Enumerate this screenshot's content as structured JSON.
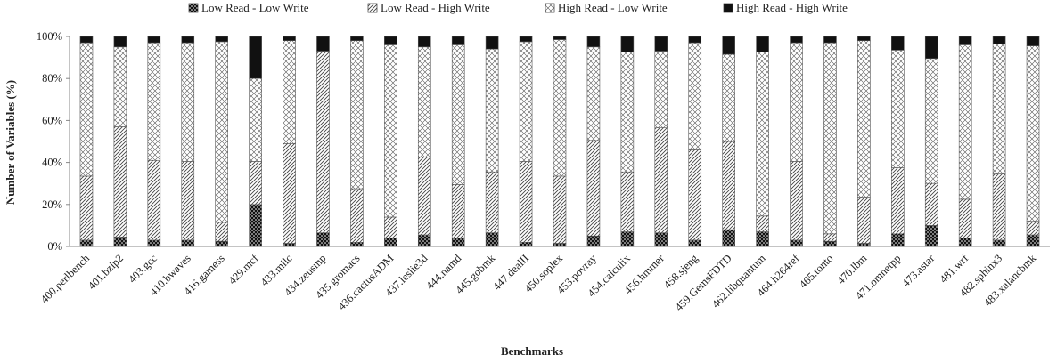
{
  "chart_data": {
    "type": "bar",
    "stacked": true,
    "percent_stacked": true,
    "title": "",
    "xlabel": "Benchmarks",
    "ylabel": "Number of Variables (%)",
    "ylim": [
      0,
      100
    ],
    "yticks": [
      "0%",
      "20%",
      "40%",
      "60%",
      "80%",
      "100%"
    ],
    "grid": false,
    "legend_position": "top-center",
    "categories": [
      "400.perlbench",
      "401.bzip2",
      "403.gcc",
      "410.bwaves",
      "416.gamess",
      "429.mcf",
      "433.milc",
      "434.zeusmp",
      "435.gromacs",
      "436.cactusADM",
      "437.leslie3d",
      "444.namd",
      "445.gobmk",
      "447.dealII",
      "450.soplex",
      "453.povray",
      "454.calculix",
      "456.hmmer",
      "458.sjeng",
      "459.GemsFDTD",
      "462.libquantum",
      "464.h264ref",
      "465.tonto",
      "470.lbm",
      "471.omnetpp",
      "473.astar",
      "481.wrf",
      "482.sphinx3",
      "483.xalancbmk"
    ],
    "series": [
      {
        "name": "Low Read - Low Write",
        "pattern": "dots-on-black",
        "values": [
          3,
          4.5,
          3,
          3,
          2.5,
          20,
          1.5,
          6.5,
          2,
          4,
          5.5,
          4,
          6.5,
          2,
          1.5,
          5,
          7,
          6.5,
          3,
          8,
          7,
          3,
          2.5,
          1.5,
          6,
          10,
          4,
          3,
          5.5
        ]
      },
      {
        "name": "Low Read - High Write",
        "pattern": "diagonal-hatch",
        "values": [
          30.5,
          52.5,
          38,
          37.5,
          9,
          20.5,
          47.5,
          86.5,
          25.5,
          10,
          37,
          25.5,
          29,
          38.5,
          32,
          45.5,
          28.5,
          50,
          43,
          42,
          7.5,
          37.5,
          3.5,
          22,
          31.5,
          20,
          18.5,
          31.5,
          6.5
        ]
      },
      {
        "name": "High Read - Low Write",
        "pattern": "cross-hatch",
        "values": [
          63.5,
          38,
          56,
          56.5,
          86,
          39.5,
          49,
          0,
          70.5,
          82,
          52.5,
          66.5,
          58.5,
          57,
          65,
          44.5,
          57,
          36.5,
          51,
          41.5,
          78,
          56.5,
          91,
          74.5,
          56,
          59.5,
          73.5,
          62,
          83.5
        ]
      },
      {
        "name": "High Read - High Write",
        "pattern": "solid-black",
        "values": [
          3,
          5,
          3,
          3,
          2.5,
          20,
          2,
          7,
          2,
          4,
          5,
          4,
          6,
          2.5,
          1.5,
          5,
          7.5,
          7,
          3,
          8.5,
          7.5,
          3,
          3,
          2,
          6.5,
          10.5,
          4,
          3.5,
          4.5
        ]
      }
    ]
  }
}
